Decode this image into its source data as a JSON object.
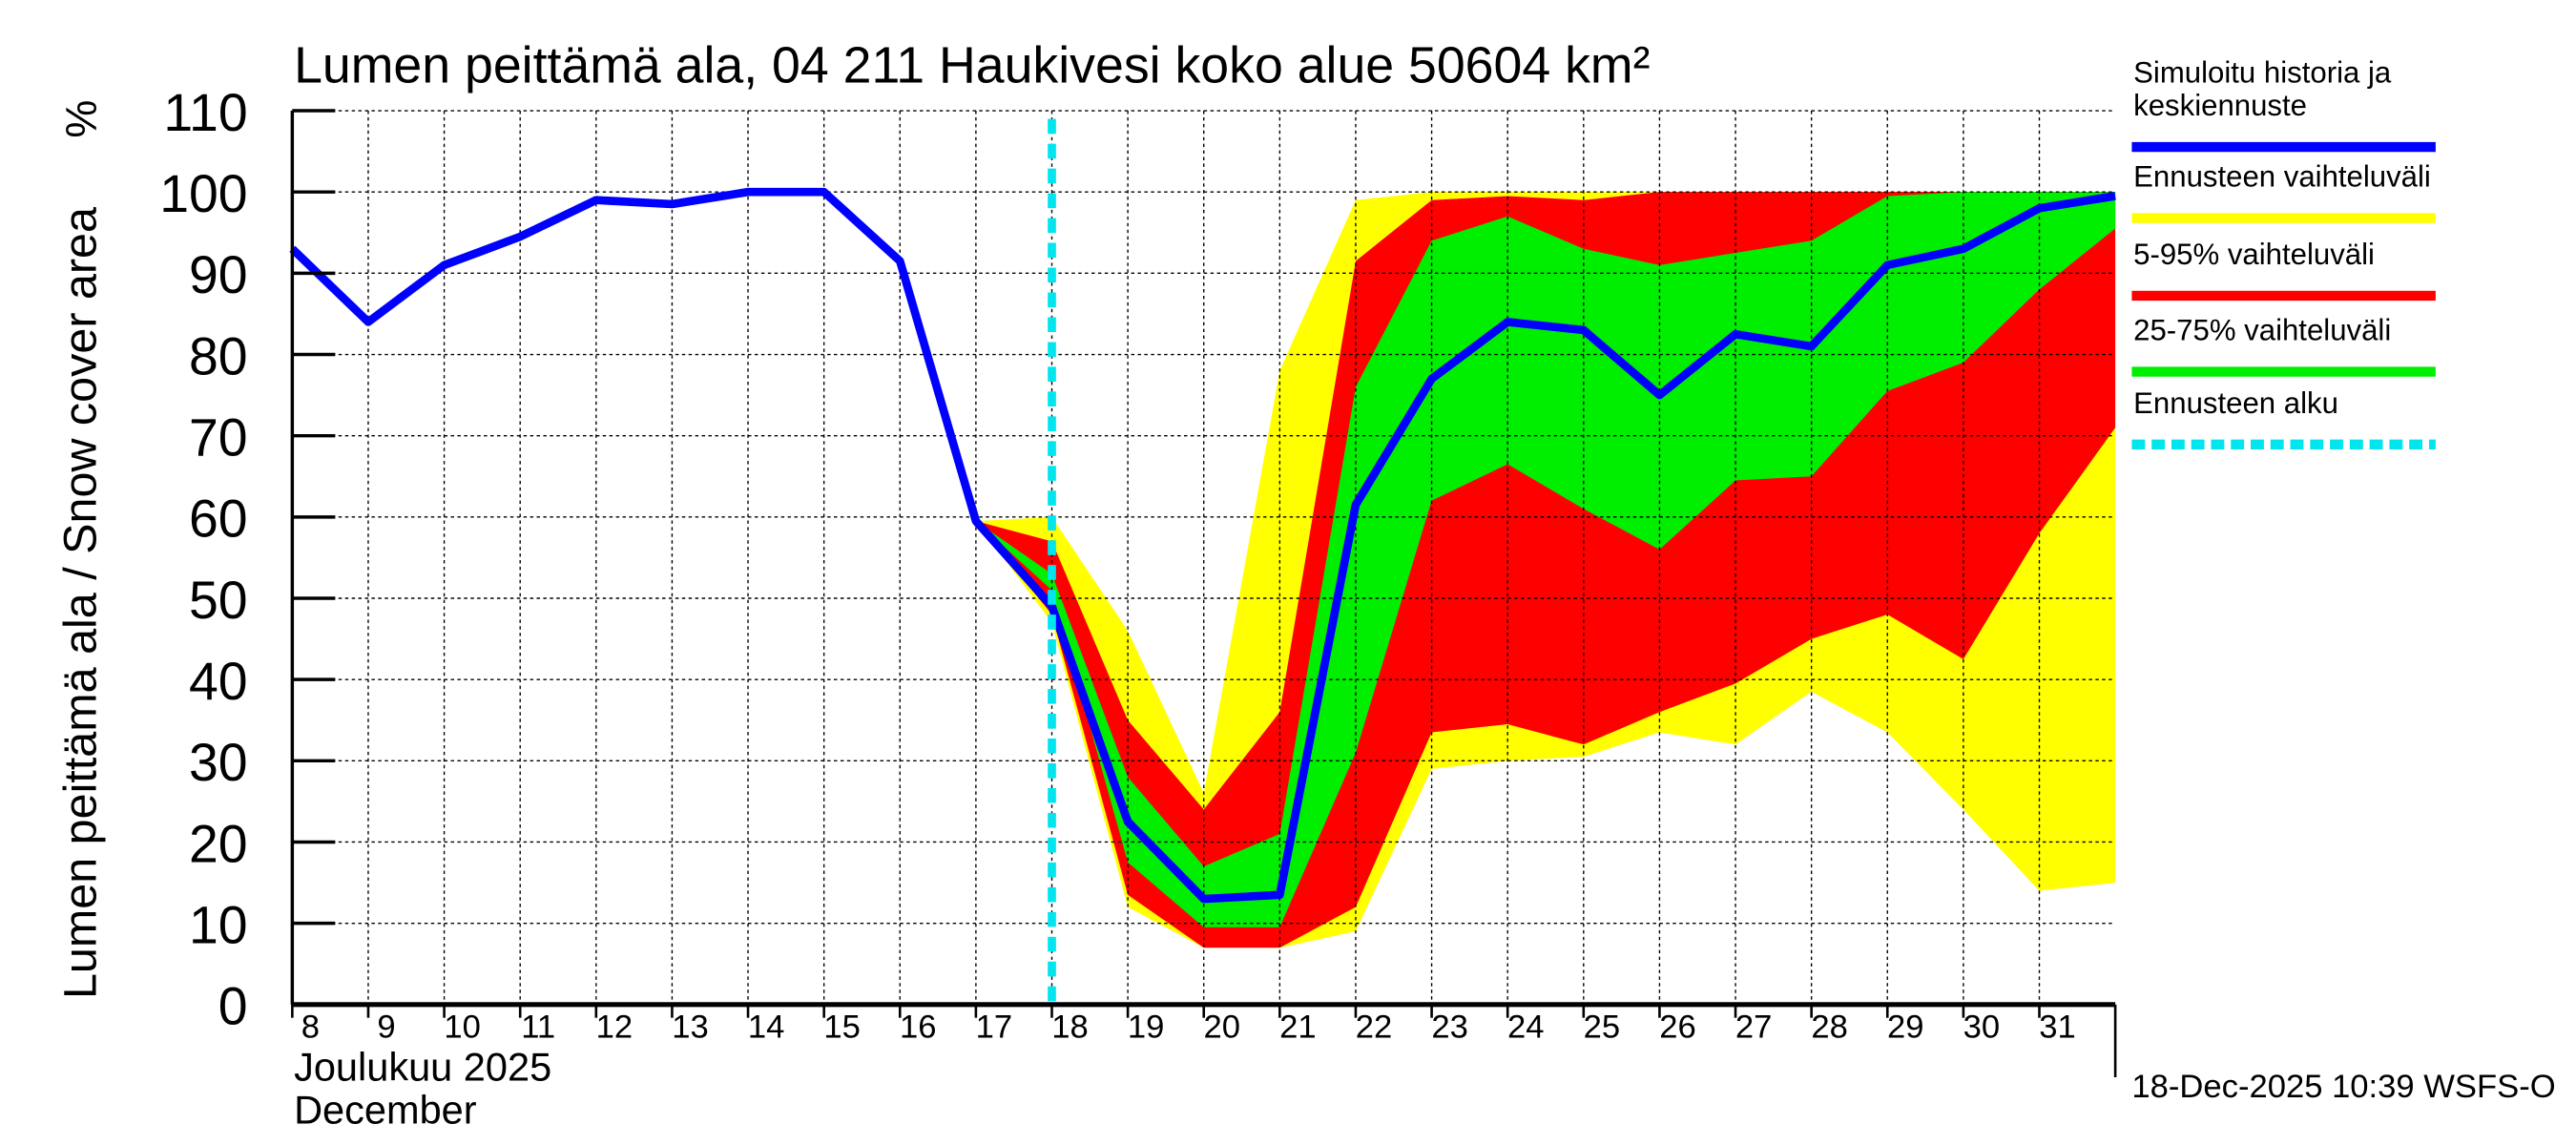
{
  "chart_data": {
    "type": "area",
    "title": "Lumen peittämä ala, 04 211 Haukivesi koko alue 50604 km²",
    "ylabel": "Lumen peittämä ala / Snow cover area",
    "yunit": "%",
    "ylim": [
      0,
      110
    ],
    "yticks": [
      0,
      10,
      20,
      30,
      40,
      50,
      60,
      70,
      80,
      90,
      100,
      110
    ],
    "xlim": [
      8,
      32
    ],
    "xticks": [
      "8",
      "9",
      "10",
      "11",
      "12",
      "13",
      "14",
      "15",
      "16",
      "17",
      "18",
      "19",
      "20",
      "21",
      "22",
      "23",
      "24",
      "25",
      "26",
      "27",
      "28",
      "29",
      "30",
      "31"
    ],
    "xlabel_line1": "Joulukuu  2025",
    "xlabel_line2": "December",
    "footer": "18-Dec-2025 10:39 WSFS-O",
    "grid": true,
    "forecast_start_day": 18,
    "x": [
      8,
      9,
      10,
      11,
      12,
      13,
      14,
      15,
      16,
      17,
      18,
      19,
      20,
      21,
      22,
      23,
      24,
      25,
      26,
      27,
      28,
      29,
      30,
      31,
      32
    ],
    "series": [
      {
        "name": "Simuloitu historia ja keskiennuste",
        "color": "#0000ff",
        "values": [
          93,
          84,
          91,
          94.5,
          99,
          98.5,
          100,
          100,
          91.5,
          59.5,
          49,
          22.5,
          13,
          13.5,
          61.5,
          77,
          84,
          83,
          75,
          82.5,
          81,
          91,
          93,
          98,
          99.5
        ]
      }
    ],
    "bands": [
      {
        "name": "Ennusteen vaihteluväli",
        "color": "#ffff00",
        "x_start": 17,
        "upper": [
          59.5,
          60,
          46,
          26,
          78,
          99,
          100,
          100,
          100,
          100,
          100,
          100,
          100,
          100,
          100,
          100
        ],
        "lower": [
          59.5,
          47,
          12,
          7,
          7,
          9,
          29,
          30,
          30.5,
          33.5,
          32,
          38.5,
          33.5,
          24,
          14,
          15
        ]
      },
      {
        "name": "5-95% vaihteluväli",
        "color": "#ff0000",
        "x_start": 17,
        "upper": [
          59.5,
          57,
          35,
          24,
          36,
          91.5,
          99,
          99.5,
          99,
          100,
          100,
          100,
          100,
          100,
          100,
          100
        ],
        "lower": [
          59.5,
          48,
          13.5,
          7,
          7,
          12,
          33.5,
          34.5,
          32,
          36,
          39.5,
          45,
          48,
          42.5,
          58,
          71
        ]
      },
      {
        "name": "25-75% vaihteluväli",
        "color": "#00ee00",
        "x_start": 17,
        "upper": [
          59.5,
          53,
          28,
          17,
          21,
          76,
          94,
          97,
          93,
          91,
          92.5,
          94,
          99.5,
          100,
          100,
          100
        ],
        "lower": [
          59.5,
          51,
          17.5,
          9.5,
          9.5,
          31,
          62,
          66.5,
          61,
          56,
          64.5,
          65,
          75.5,
          79,
          88,
          95.5
        ]
      }
    ],
    "legend": {
      "placement": "right",
      "entries": [
        {
          "label_line1": "Simuloitu historia ja",
          "label_line2": "keskiennuste",
          "color": "#0000ff",
          "style": "solid"
        },
        {
          "label_line1": "Ennusteen vaihteluväli",
          "color": "#ffff00",
          "style": "solid"
        },
        {
          "label_line1": "5-95% vaihteluväli",
          "color": "#ff0000",
          "style": "solid"
        },
        {
          "label_line1": "25-75% vaihteluväli",
          "color": "#00ee00",
          "style": "solid"
        },
        {
          "label_line1": "Ennusteen alku",
          "color": "#00e5ee",
          "style": "dashed"
        }
      ]
    }
  }
}
